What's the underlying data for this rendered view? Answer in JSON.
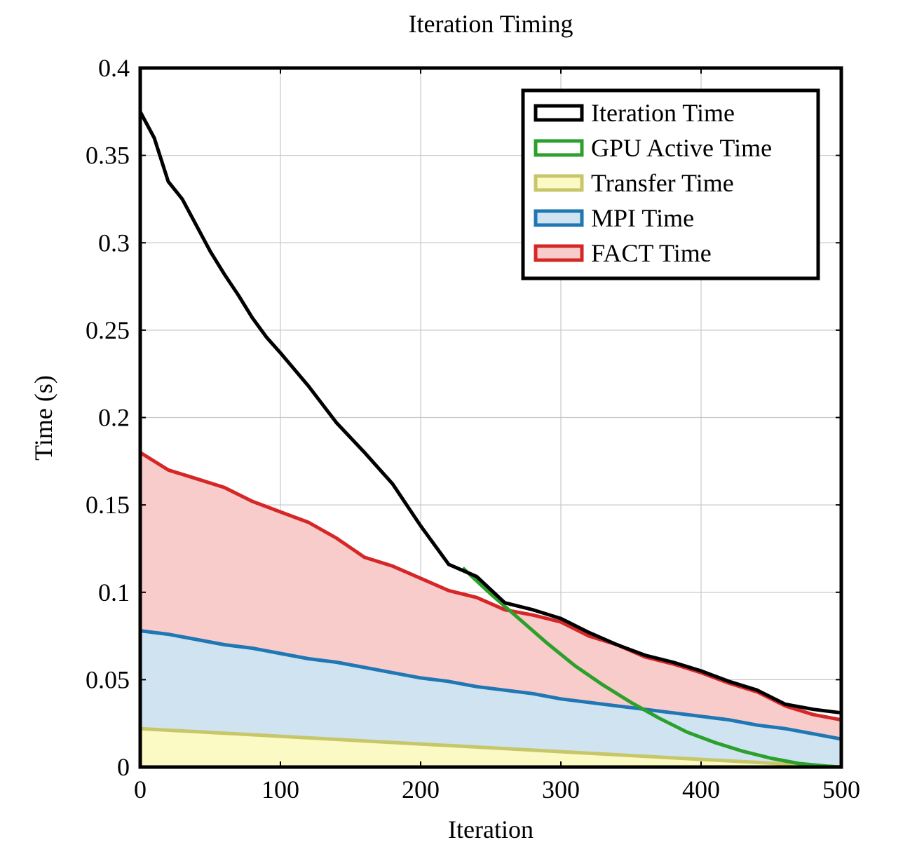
{
  "chart_data": {
    "type": "area",
    "title": "Iteration Timing",
    "xlabel": "Iteration",
    "ylabel": "Time (s)",
    "xlim": [
      0,
      500
    ],
    "ylim": [
      0,
      0.4
    ],
    "x_ticks": [
      "0",
      "100",
      "200",
      "300",
      "400",
      "500"
    ],
    "y_ticks": [
      "0",
      "0.05",
      "0.1",
      "0.15",
      "0.2",
      "0.25",
      "0.3",
      "0.35",
      "0.4"
    ],
    "grid": true,
    "legend_position": "top-right",
    "series": [
      {
        "name": "Iteration Time",
        "style": "line",
        "color": "#000000",
        "x": [
          0,
          10,
          20,
          30,
          40,
          50,
          60,
          70,
          80,
          90,
          100,
          120,
          140,
          160,
          180,
          200,
          220,
          240,
          260,
          280,
          300,
          320,
          340,
          360,
          380,
          400,
          420,
          440,
          460,
          480,
          500
        ],
        "y": [
          0.375,
          0.36,
          0.335,
          0.325,
          0.31,
          0.295,
          0.282,
          0.27,
          0.257,
          0.246,
          0.237,
          0.218,
          0.197,
          0.18,
          0.162,
          0.138,
          0.116,
          0.109,
          0.094,
          0.09,
          0.085,
          0.077,
          0.07,
          0.064,
          0.06,
          0.055,
          0.049,
          0.044,
          0.036,
          0.033,
          0.031
        ]
      },
      {
        "name": "GPU Active Time",
        "style": "line",
        "color": "#2ca02c",
        "x": [
          230,
          250,
          270,
          290,
          310,
          330,
          350,
          370,
          390,
          410,
          430,
          450,
          470,
          490,
          500
        ],
        "y": [
          0.114,
          0.099,
          0.085,
          0.071,
          0.058,
          0.047,
          0.037,
          0.028,
          0.02,
          0.014,
          0.009,
          0.005,
          0.002,
          0.0005,
          0.0
        ]
      },
      {
        "name": "Transfer Time",
        "style": "area",
        "color": "#c7c76a",
        "fill": "#fbf9c4",
        "x": [
          0,
          500
        ],
        "y": [
          0.022,
          0.0
        ]
      },
      {
        "name": "MPI Time",
        "style": "area",
        "color": "#1f77b4",
        "fill": "#cfe3f0",
        "x": [
          0,
          20,
          40,
          60,
          80,
          100,
          120,
          140,
          160,
          180,
          200,
          220,
          240,
          260,
          280,
          300,
          320,
          340,
          360,
          380,
          400,
          420,
          440,
          460,
          480,
          500
        ],
        "y": [
          0.078,
          0.076,
          0.073,
          0.07,
          0.068,
          0.065,
          0.062,
          0.06,
          0.057,
          0.054,
          0.051,
          0.049,
          0.046,
          0.044,
          0.042,
          0.039,
          0.037,
          0.035,
          0.033,
          0.031,
          0.029,
          0.027,
          0.024,
          0.022,
          0.019,
          0.016
        ]
      },
      {
        "name": "FACT Time",
        "style": "area",
        "color": "#d62728",
        "fill": "#f9cccc",
        "x": [
          0,
          20,
          40,
          60,
          80,
          100,
          120,
          140,
          160,
          180,
          200,
          220,
          240,
          260,
          280,
          300,
          320,
          340,
          360,
          380,
          400,
          420,
          440,
          460,
          480,
          500
        ],
        "y": [
          0.18,
          0.17,
          0.165,
          0.16,
          0.152,
          0.146,
          0.14,
          0.131,
          0.12,
          0.115,
          0.108,
          0.101,
          0.097,
          0.09,
          0.087,
          0.083,
          0.075,
          0.07,
          0.063,
          0.059,
          0.054,
          0.048,
          0.043,
          0.035,
          0.03,
          0.027
        ]
      }
    ]
  }
}
